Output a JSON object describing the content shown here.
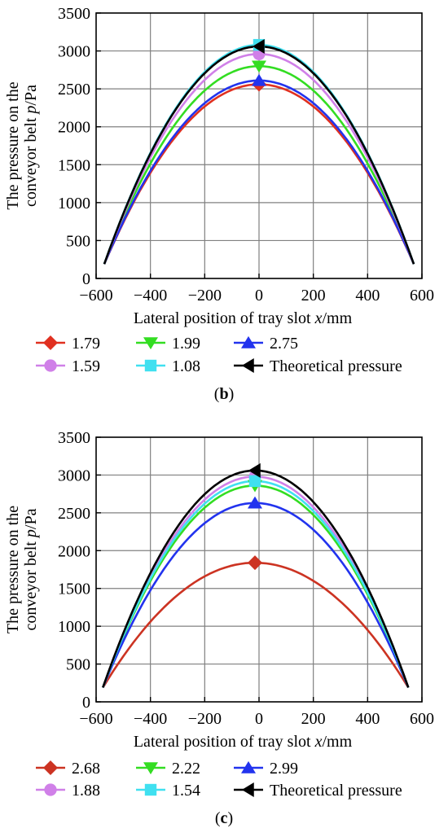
{
  "chart_data": [
    {
      "panel": "b",
      "type": "line",
      "xlabel_main": "Lateral position of tray slot ",
      "xlabel_var": "x",
      "xlabel_unit": "/mm",
      "ylabel_line1": "The pressure on the",
      "ylabel_line2_main": "conveyor belt ",
      "ylabel_line2_var": "p",
      "ylabel_line2_unit": "/Pa",
      "xlim": [
        -600,
        600
      ],
      "ylim": [
        0,
        3500
      ],
      "xticks": [
        "−600",
        "−400",
        "−200",
        "0",
        "200",
        "400",
        "600"
      ],
      "yticks": [
        "0",
        "500",
        "1000",
        "1500",
        "2000",
        "2500",
        "3000",
        "3500"
      ],
      "grid": true,
      "legend_position": "bottom",
      "series": [
        {
          "name": "1.79",
          "color": "#e03020",
          "marker": "diamond",
          "x_ends": [
            -570,
            570
          ],
          "peak_x": 0,
          "peak_y": 2560,
          "end_y": 190
        },
        {
          "name": "1.99",
          "color": "#33dd22",
          "marker": "triangle-down",
          "x_ends": [
            -570,
            570
          ],
          "peak_x": 0,
          "peak_y": 2800,
          "end_y": 190
        },
        {
          "name": "2.75",
          "color": "#2233ee",
          "marker": "triangle-up",
          "x_ends": [
            -570,
            570
          ],
          "peak_x": 0,
          "peak_y": 2610,
          "end_y": 190
        },
        {
          "name": "1.59",
          "color": "#d080e8",
          "marker": "circle",
          "x_ends": [
            -570,
            570
          ],
          "peak_x": 0,
          "peak_y": 2960,
          "end_y": 190
        },
        {
          "name": "1.08",
          "color": "#40e0f0",
          "marker": "square",
          "x_ends": [
            -570,
            570
          ],
          "peak_x": 0,
          "peak_y": 3080,
          "end_y": 190
        },
        {
          "name": "Theoretical pressure",
          "color": "#000000",
          "marker": "triangle-left",
          "x_ends": [
            -570,
            570
          ],
          "peak_x": 0,
          "peak_y": 3060,
          "end_y": 190
        }
      ]
    },
    {
      "panel": "c",
      "type": "line",
      "xlabel_main": "Lateral position of tray slot ",
      "xlabel_var": "x",
      "xlabel_unit": "/mm",
      "ylabel_line1": "The pressure on the",
      "ylabel_line2_main": "conveyor belt ",
      "ylabel_line2_var": "p",
      "ylabel_line2_unit": "/Pa",
      "xlim": [
        -600,
        600
      ],
      "ylim": [
        0,
        3500
      ],
      "xticks": [
        "−600",
        "−400",
        "−200",
        "0",
        "200",
        "400",
        "600"
      ],
      "yticks": [
        "0",
        "500",
        "1000",
        "1500",
        "2000",
        "2500",
        "3000",
        "3500"
      ],
      "grid": true,
      "legend_position": "bottom",
      "series": [
        {
          "name": "2.68",
          "color": "#cc3322",
          "marker": "diamond",
          "x_ends": [
            -575,
            550
          ],
          "peak_x": -15,
          "peak_y": 1840,
          "end_y": 190
        },
        {
          "name": "2.22",
          "color": "#33dd22",
          "marker": "triangle-down",
          "x_ends": [
            -575,
            550
          ],
          "peak_x": -15,
          "peak_y": 2860,
          "end_y": 190
        },
        {
          "name": "2.99",
          "color": "#2233ee",
          "marker": "triangle-up",
          "x_ends": [
            -575,
            550
          ],
          "peak_x": -15,
          "peak_y": 2630,
          "end_y": 190
        },
        {
          "name": "1.88",
          "color": "#d080e8",
          "marker": "circle",
          "x_ends": [
            -575,
            550
          ],
          "peak_x": -15,
          "peak_y": 2980,
          "end_y": 190
        },
        {
          "name": "1.54",
          "color": "#40e0f0",
          "marker": "square",
          "x_ends": [
            -575,
            550
          ],
          "peak_x": -15,
          "peak_y": 2920,
          "end_y": 190
        },
        {
          "name": "Theoretical pressure",
          "color": "#000000",
          "marker": "triangle-left",
          "x_ends": [
            -575,
            550
          ],
          "peak_x": -15,
          "peak_y": 3060,
          "end_y": 190
        }
      ]
    }
  ],
  "captions": [
    "b",
    "c"
  ]
}
